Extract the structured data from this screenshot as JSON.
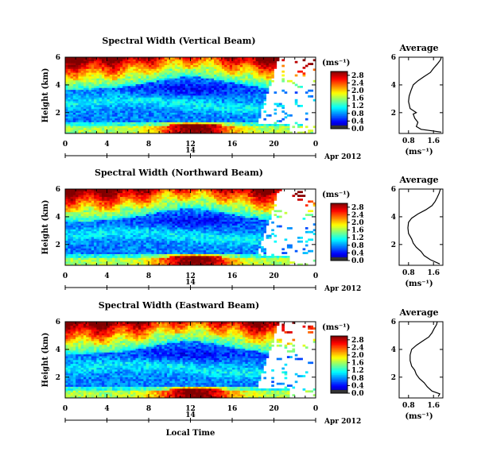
{
  "chart_data": [
    {
      "type": "heatmap",
      "title": "Spectral Width (Vertical Beam)",
      "ylabel": "Height (km)",
      "x_ticks": [
        "0",
        "4",
        "8",
        "12",
        "16",
        "20",
        "0"
      ],
      "xlim": [
        0,
        24
      ],
      "ylim": [
        0.5,
        6
      ],
      "y_ticks": [
        "2",
        "4",
        "6"
      ],
      "date_day": "14",
      "date_label": "Apr 2012",
      "colorbar": {
        "unit": "(ms⁻¹)",
        "ticks": [
          "0.0",
          "0.4",
          "0.8",
          "1.2",
          "1.6",
          "2.0",
          "2.4",
          "2.8"
        ],
        "range": [
          0,
          3.0
        ]
      },
      "average": {
        "title": "Average",
        "unit": "(ms⁻¹)",
        "x_ticks": [
          "0.8",
          "1.6"
        ],
        "xlim": [
          0.5,
          1.9
        ],
        "y_ticks": [
          "2",
          "4",
          "6"
        ],
        "profile": [
          [
            0.6,
            1.85
          ],
          [
            0.8,
            1.2
          ],
          [
            1.0,
            1.05
          ],
          [
            1.3,
            1.1
          ],
          [
            1.6,
            1.0
          ],
          [
            1.9,
            0.95
          ],
          [
            2.0,
            1.05
          ],
          [
            2.3,
            0.85
          ],
          [
            2.8,
            0.8
          ],
          [
            3.2,
            0.82
          ],
          [
            3.6,
            0.88
          ],
          [
            4.0,
            0.95
          ],
          [
            4.3,
            1.1
          ],
          [
            4.6,
            1.3
          ],
          [
            4.9,
            1.5
          ],
          [
            5.2,
            1.6
          ],
          [
            5.5,
            1.72
          ],
          [
            5.8,
            1.82
          ],
          [
            6.0,
            1.85
          ]
        ]
      }
    },
    {
      "type": "heatmap",
      "title": "Spectral Width (Northward Beam)",
      "ylabel": "Height (km)",
      "x_ticks": [
        "0",
        "4",
        "8",
        "12",
        "16",
        "20",
        "0"
      ],
      "xlim": [
        0,
        24
      ],
      "ylim": [
        0.5,
        6
      ],
      "y_ticks": [
        "2",
        "4",
        "6"
      ],
      "date_day": "14",
      "date_label": "Apr 2012",
      "colorbar": {
        "unit": "(ms⁻¹)",
        "ticks": [
          "0.0",
          "0.4",
          "0.8",
          "1.2",
          "1.6",
          "2.0",
          "2.4",
          "2.8"
        ],
        "range": [
          0,
          3.0
        ]
      },
      "average": {
        "title": "Average",
        "unit": "(ms⁻¹)",
        "x_ticks": [
          "0.8",
          "1.6"
        ],
        "xlim": [
          0.5,
          1.9
        ],
        "y_ticks": [
          "2",
          "4",
          "6"
        ],
        "profile": [
          [
            0.6,
            1.8
          ],
          [
            0.9,
            1.5
          ],
          [
            1.2,
            1.3
          ],
          [
            1.5,
            1.2
          ],
          [
            1.8,
            1.05
          ],
          [
            2.1,
            0.95
          ],
          [
            2.4,
            0.9
          ],
          [
            2.8,
            0.8
          ],
          [
            3.2,
            0.78
          ],
          [
            3.6,
            0.8
          ],
          [
            3.9,
            0.9
          ],
          [
            4.2,
            1.1
          ],
          [
            4.5,
            1.35
          ],
          [
            4.8,
            1.55
          ],
          [
            5.1,
            1.65
          ],
          [
            5.4,
            1.72
          ],
          [
            5.7,
            1.78
          ],
          [
            6.0,
            1.82
          ]
        ]
      }
    },
    {
      "type": "heatmap",
      "title": "Spectral Width (Eastward Beam)",
      "ylabel": "Height (km)",
      "xlabel": "Local Time",
      "x_ticks": [
        "0",
        "4",
        "8",
        "12",
        "16",
        "20",
        "0"
      ],
      "xlim": [
        0,
        24
      ],
      "ylim": [
        0.5,
        6
      ],
      "y_ticks": [
        "2",
        "4",
        "6"
      ],
      "date_day": "14",
      "date_label": "Apr 2012",
      "colorbar": {
        "unit": "(ms⁻¹)",
        "ticks": [
          "0.0",
          "0.4",
          "0.8",
          "1.2",
          "1.6",
          "2.0",
          "2.4",
          "2.8"
        ],
        "range": [
          0,
          3.0
        ]
      },
      "average": {
        "title": "Average",
        "unit": "(ms⁻¹)",
        "x_ticks": [
          "0.8",
          "1.6"
        ],
        "xlim": [
          0.5,
          1.9
        ],
        "y_ticks": [
          "2",
          "4",
          "6"
        ],
        "profile": [
          [
            0.6,
            1.75
          ],
          [
            0.8,
            1.8
          ],
          [
            1.0,
            1.55
          ],
          [
            1.3,
            1.4
          ],
          [
            1.6,
            1.3
          ],
          [
            1.9,
            1.15
          ],
          [
            2.2,
            1.05
          ],
          [
            2.5,
            1.0
          ],
          [
            2.8,
            0.9
          ],
          [
            3.2,
            0.85
          ],
          [
            3.6,
            0.85
          ],
          [
            4.0,
            0.9
          ],
          [
            4.3,
            1.05
          ],
          [
            4.6,
            1.25
          ],
          [
            4.9,
            1.45
          ],
          [
            5.2,
            1.55
          ],
          [
            5.5,
            1.62
          ],
          [
            5.8,
            1.7
          ],
          [
            6.0,
            1.72
          ]
        ]
      }
    }
  ]
}
